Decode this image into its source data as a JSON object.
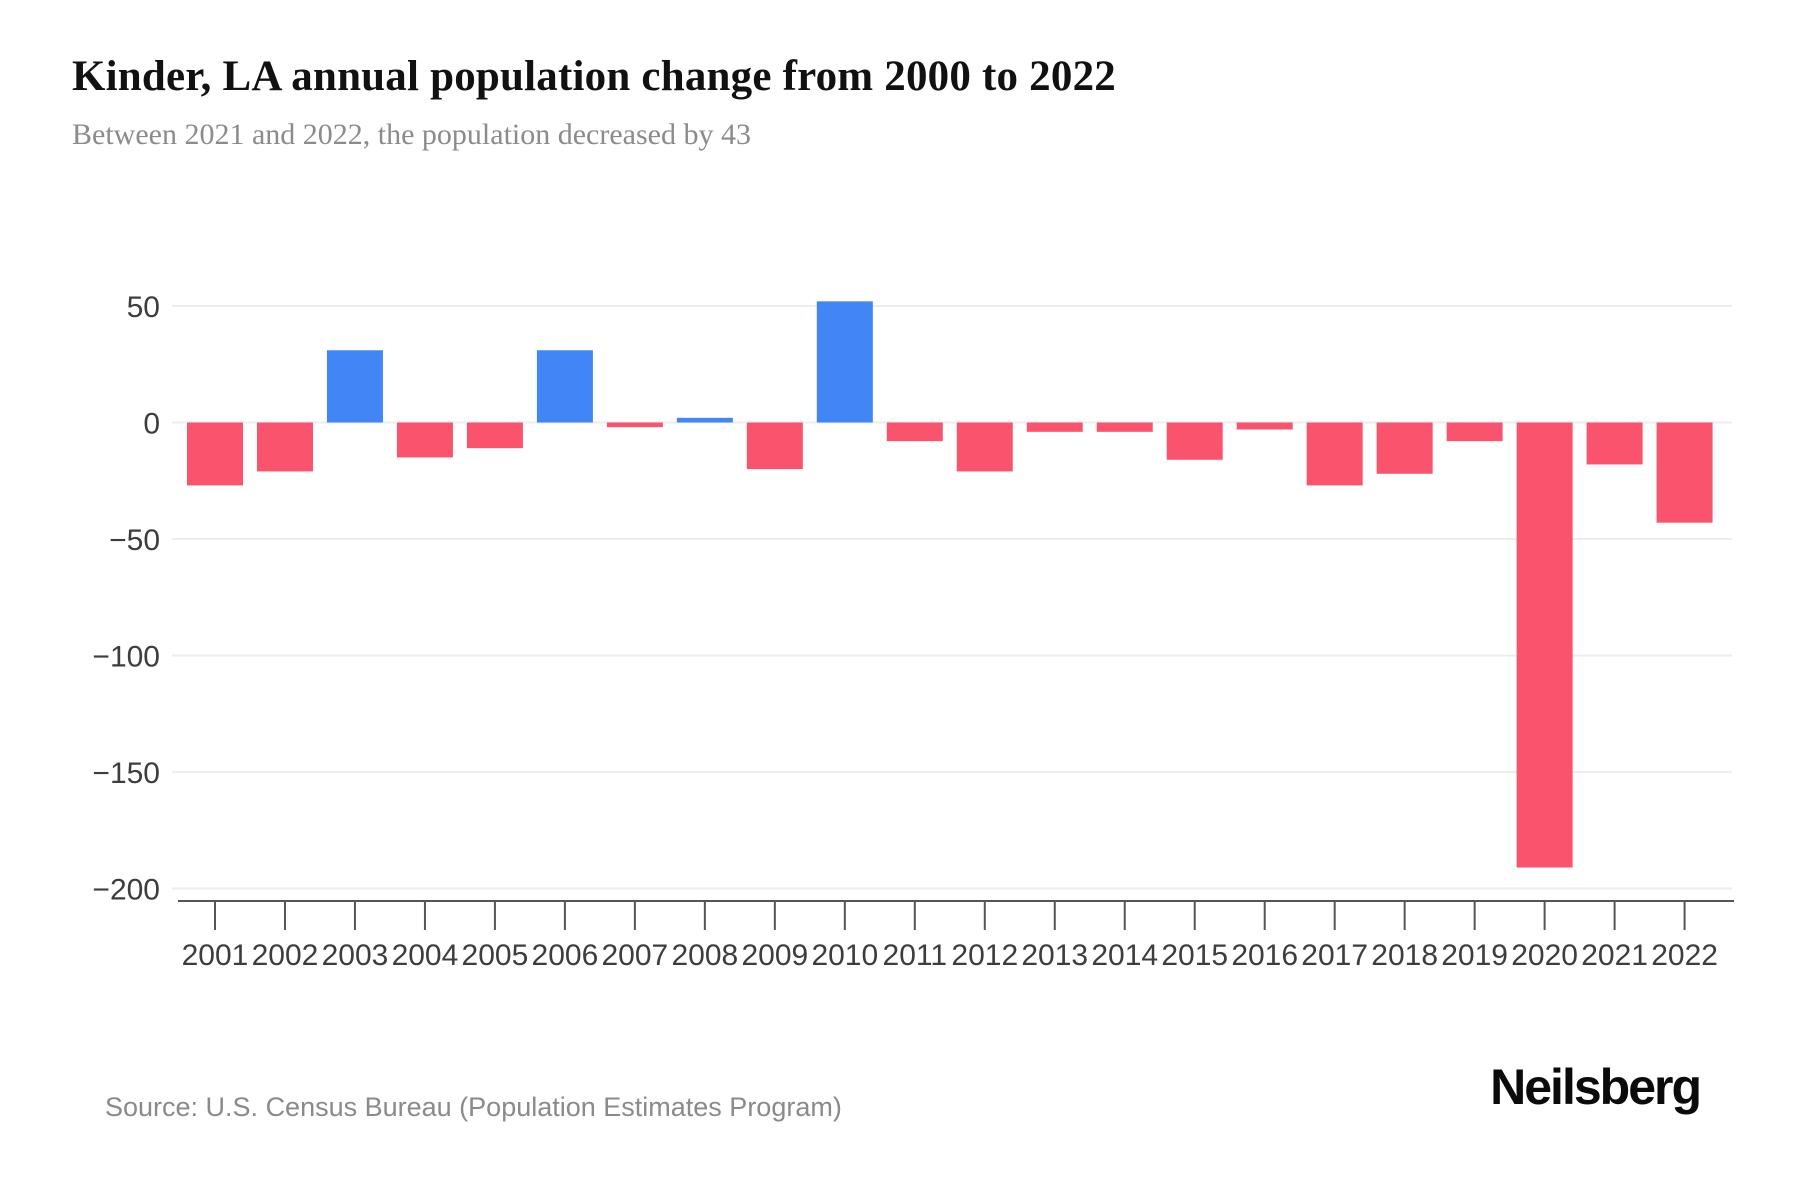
{
  "header": {
    "title": "Kinder, LA annual population change from 2000 to 2022",
    "subtitle": "Between 2021 and 2022, the population decreased by 43"
  },
  "chart_data": {
    "type": "bar",
    "title": "Kinder, LA annual population change from 2000 to 2022",
    "subtitle": "Between 2021 and 2022, the population decreased by 43",
    "categories": [
      "2001",
      "2002",
      "2003",
      "2004",
      "2005",
      "2006",
      "2007",
      "2008",
      "2009",
      "2010",
      "2011",
      "2012",
      "2013",
      "2014",
      "2015",
      "2016",
      "2017",
      "2018",
      "2019",
      "2020",
      "2021",
      "2022"
    ],
    "values": [
      -27,
      -21,
      31,
      -15,
      -11,
      31,
      -2,
      2,
      -20,
      52,
      -8,
      -21,
      -4,
      -4,
      -16,
      -3,
      -27,
      -22,
      -8,
      -191,
      -18,
      -43
    ],
    "xlabel": "",
    "ylabel": "",
    "ylim": [
      -200,
      55
    ],
    "yticks": [
      50,
      0,
      -50,
      -100,
      -150,
      -200
    ],
    "ytick_labels": [
      "50",
      "0",
      "−50",
      "−100",
      "−150",
      "−200"
    ],
    "grid": true,
    "legend": "none",
    "colors": {
      "positive": "#4285f4",
      "negative": "#f9536e",
      "gridline": "#ededed",
      "axis": "#555555",
      "tick_text": "#3d3d3d"
    }
  },
  "footer": {
    "source": "Source: U.S. Census Bureau (Population Estimates Program)",
    "brand": "Neilsberg"
  }
}
